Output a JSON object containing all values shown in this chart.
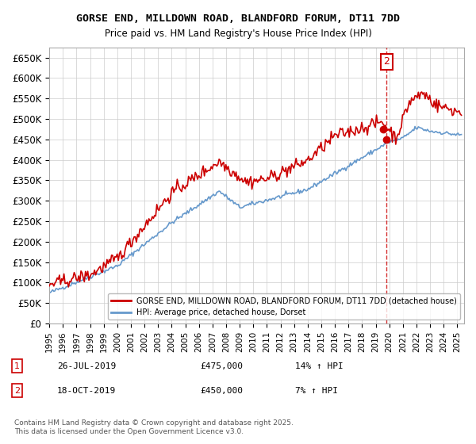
{
  "title": "GORSE END, MILLDOWN ROAD, BLANDFORD FORUM, DT11 7DD",
  "subtitle": "Price paid vs. HM Land Registry's House Price Index (HPI)",
  "ylabel_ticks": [
    "£0",
    "£50K",
    "£100K",
    "£150K",
    "£200K",
    "£250K",
    "£300K",
    "£350K",
    "£400K",
    "£450K",
    "£500K",
    "£550K",
    "£600K",
    "£650K"
  ],
  "ytick_values": [
    0,
    50000,
    100000,
    150000,
    200000,
    250000,
    300000,
    350000,
    400000,
    450000,
    500000,
    550000,
    600000,
    650000
  ],
  "ylim": [
    0,
    675000
  ],
  "xlim_start": 1995.0,
  "xlim_end": 2025.5,
  "legend_line1": "GORSE END, MILLDOWN ROAD, BLANDFORD FORUM, DT11 7DD (detached house)",
  "legend_line2": "HPI: Average price, detached house, Dorset",
  "annotation1_label": "1",
  "annotation1_date": "26-JUL-2019",
  "annotation1_price": "£475,000",
  "annotation1_hpi": "14% ↑ HPI",
  "annotation2_label": "2",
  "annotation2_date": "18-OCT-2019",
  "annotation2_price": "£450,000",
  "annotation2_hpi": "7% ↑ HPI",
  "footnote": "Contains HM Land Registry data © Crown copyright and database right 2025.\nThis data is licensed under the Open Government Licence v3.0.",
  "red_color": "#cc0000",
  "blue_color": "#6699cc",
  "marker_color": "#cc0000",
  "dashed_line_color": "#cc0000",
  "annotation_box_color": "#cc0000",
  "background_color": "#ffffff",
  "grid_color": "#cccccc"
}
